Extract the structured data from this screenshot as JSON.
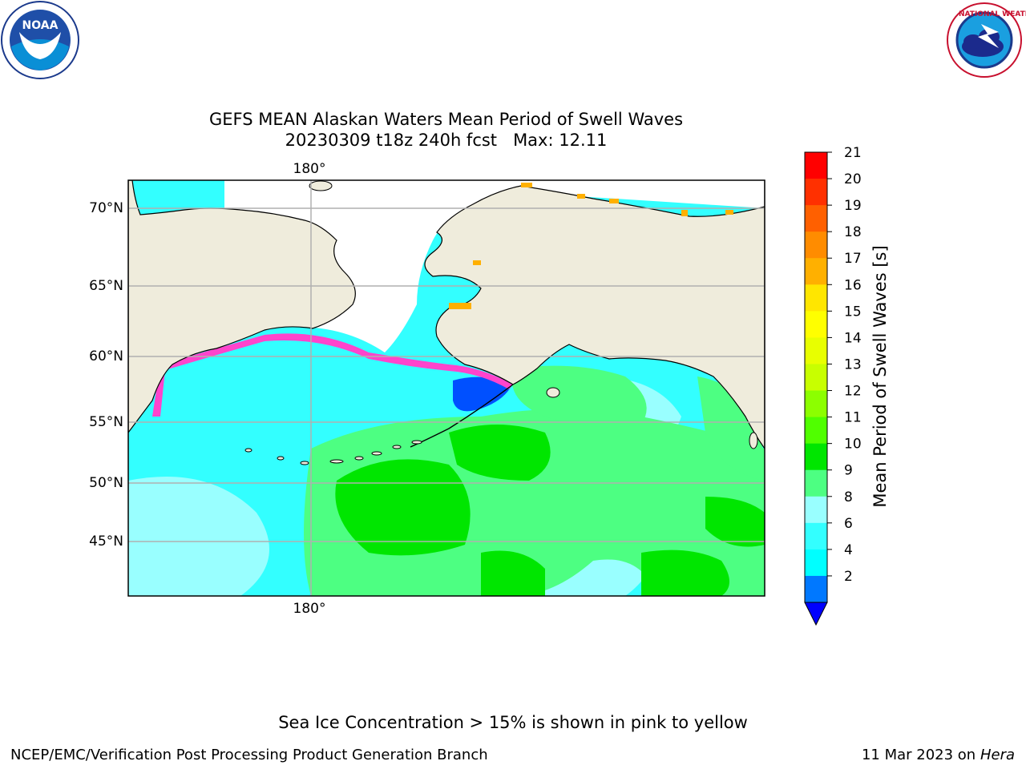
{
  "header": {
    "title_line1": "GEFS MEAN Alaskan Waters Mean Period of Swell Waves",
    "title_line2": "20230309 t18z 240h fcst   Max: 12.11",
    "left_logo": "NOAA",
    "left_logo_ring": "NATIONAL OCEANIC AND ATMOSPHERIC ADMINISTRATION · U.S. DEPARTMENT OF COMMERCE",
    "right_logo_ring": "NATIONAL WEATHER SERVICE"
  },
  "map": {
    "lon_label": "180°",
    "lat_labels": [
      "70°N",
      "65°N",
      "60°N",
      "55°N",
      "50°N",
      "45°N"
    ],
    "colors": {
      "land": "#efecdc",
      "ocean_low": "#00ffff",
      "ocean_mid": "#4dff82",
      "ocean_high": "#00e000",
      "grid": "#b0b0b0"
    }
  },
  "colorbar": {
    "title": "Mean Period of Swell Waves [s]",
    "ticks": [
      "21",
      "20",
      "19",
      "18",
      "17",
      "16",
      "15",
      "14",
      "13",
      "12",
      "11",
      "10",
      "9",
      "8",
      "6",
      "4",
      "2"
    ],
    "colors": [
      "#ff0000",
      "#ff3000",
      "#ff6000",
      "#ff8c00",
      "#ffb000",
      "#ffe600",
      "#ffff00",
      "#e8ff00",
      "#c8ff00",
      "#8cff00",
      "#50ff00",
      "#00e600",
      "#4dff82",
      "#99ffff",
      "#33ffff",
      "#00ffff",
      "#0078ff"
    ],
    "under_color": "#0000ff"
  },
  "footer": {
    "note": "Sea Ice Concentration > 15% is shown in pink to yellow",
    "left": "NCEP/EMC/Verification Post Processing Product Generation Branch",
    "right_date": "11 Mar 2023 on",
    "right_host": "Hera"
  }
}
